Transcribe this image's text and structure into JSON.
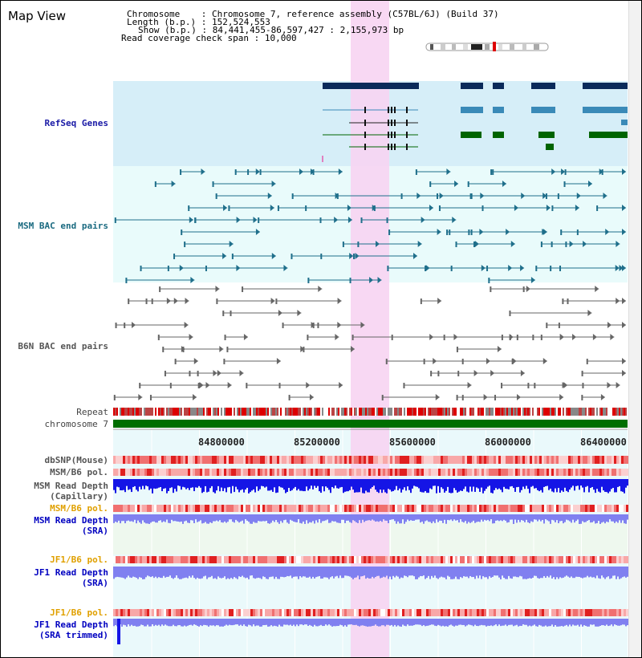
{
  "title": "Map View",
  "info": {
    "chromosome_label": "Chromosome",
    "chromosome_value": "Chromosome 7, reference assembly (C57BL/6J) (Build 37)",
    "length_label": "Length (b.p.)",
    "length_value": "152,524,553",
    "show_label": "Show (b.p.)",
    "show_value": "84,441,455-86,597,427 : 2,155,973 bp",
    "coverage_label": "Read coverage check span",
    "coverage_value": "10,000"
  },
  "axis": {
    "ticks": [
      "84800000",
      "85200000",
      "85600000",
      "86000000",
      "86400000"
    ]
  },
  "tracks": {
    "refseq": "RefSeq Genes",
    "msm_bac": "MSM BAC end pairs",
    "b6n_bac": "B6N BAC end pairs",
    "repeat": "Repeat",
    "chromosome": "chromosome 7",
    "dbsnp": "dbSNP(Mouse)",
    "msm_b6_pol": "MSM/B6 pol.",
    "msm_depth_cap_1": "MSM Read Depth",
    "msm_depth_cap_2": "(Capillary)",
    "msm_b6_pol2": "MSM/B6 pol.",
    "msm_depth_sra_1": "MSM Read Depth",
    "msm_depth_sra_2": "(SRA)",
    "jf1_b6_pol": "JF1/B6 pol.",
    "jf1_depth_sra_1": "JF1 Read Depth",
    "jf1_depth_sra_2": "(SRA)",
    "jf1_b6_pol2": "JF1/B6 pol.",
    "jf1_depth_trim_1": "JF1 Read Depth",
    "jf1_depth_trim_2": "(SRA trimmed)"
  },
  "colors": {
    "highlight": "#f7d4f2",
    "refseq_bg": "#d6eef8",
    "msm_bg": "#e9fbfb",
    "gene_navy": "#0a2a5a",
    "gene_teal": "#3a8ab8",
    "gene_green": "#006400",
    "bac_teal": "#1f6f8b",
    "bac_gray": "#666666",
    "chrom_green": "#006e00",
    "depth_blue": "#1515e6",
    "depth_light": "#8080f0"
  }
}
